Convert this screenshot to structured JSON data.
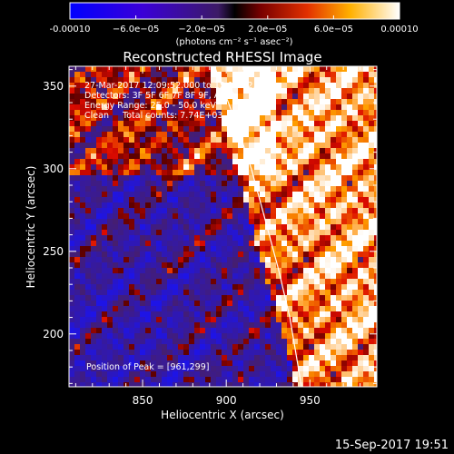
{
  "colorbar": {
    "tick_values": [
      -0.0001,
      -6e-05,
      -2e-05,
      2e-05,
      6e-05,
      0.0001
    ],
    "tick_labels": [
      "-0.00010",
      "−6.0e−05",
      "−2.0e−05",
      "2.0e−05",
      "6.0e−05",
      "0.00010"
    ],
    "unit_label": "(photons cm⁻² s⁻¹ asec⁻²)",
    "range": [
      -0.0001,
      0.0001
    ]
  },
  "chart_data": {
    "type": "heatmap",
    "title": "Reconstructed RHESSI Image",
    "xlabel": "Heliocentric X (arcsec)",
    "ylabel": "Heliocentric Y (arcsec)",
    "xlim": [
      806,
      990
    ],
    "ylim": [
      168,
      362
    ],
    "x_ticks": [
      850,
      900,
      950
    ],
    "x_tick_labels": [
      "850",
      "900",
      "950"
    ],
    "y_ticks": [
      200,
      250,
      300,
      350
    ],
    "y_tick_labels": [
      "200",
      "250",
      "300",
      "350"
    ],
    "limb_curve": [
      [
        893,
        362
      ],
      [
        905,
        330
      ],
      [
        915,
        300
      ],
      [
        923,
        270
      ],
      [
        931,
        240
      ],
      [
        938,
        210
      ],
      [
        945,
        168
      ]
    ],
    "peak_position": [
      961,
      299
    ],
    "annotations": [
      "27-Mar-2017 12:09:52.000 to 12:19:52.000",
      "Detectors: 3F 5F 6F 7F 8F 9F, Att 0",
      "Energy Range: 25.0 - 50.0 keV",
      "Clean     Total counts: 7.74E+03",
      "Position of Peak = [961,299]"
    ],
    "colormap": "blue-purple-red-yellow-white"
  },
  "footer": {
    "timestamp": "15-Sep-2017 19:51"
  }
}
